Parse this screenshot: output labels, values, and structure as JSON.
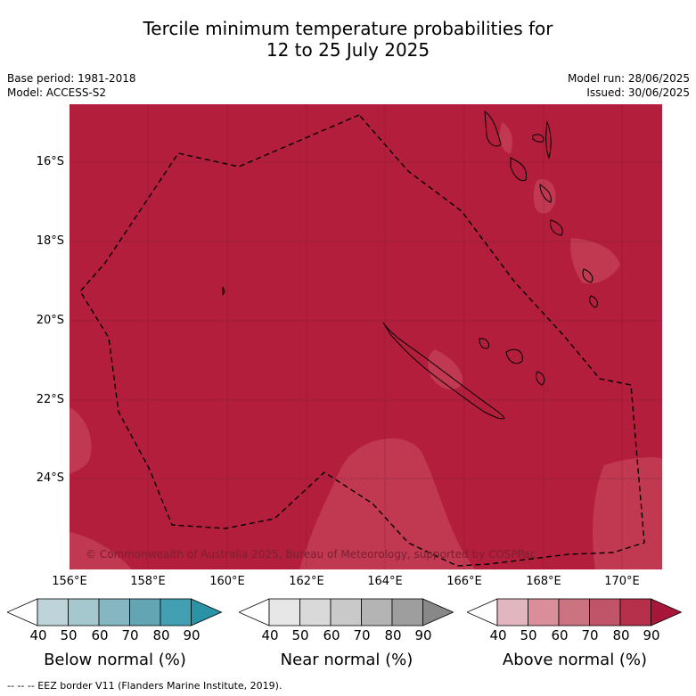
{
  "header": {
    "title_line1": "Tercile minimum temperature probabilities for",
    "title_line2": "12 to 25 July 2025",
    "base_period": "Base period: 1981-2018",
    "model": "Model: ACCESS-S2",
    "model_run": "Model run: 28/06/2025",
    "issued": "Issued: 30/06/2025"
  },
  "map": {
    "background_color": "#b31e3c",
    "lighter_color": "#c33d55",
    "copyright": "© Commonwealth of Australia 2025, Bureau of Meteorology, supported by COSPPac",
    "lat_labels": [
      "16°S",
      "18°S",
      "20°S",
      "22°S",
      "24°S"
    ],
    "lon_labels": [
      "156°E",
      "158°E",
      "160°E",
      "162°E",
      "164°E",
      "166°E",
      "168°E",
      "170°E"
    ]
  },
  "legends": [
    {
      "title": "Below normal (%)",
      "ticks": [
        "40",
        "50",
        "60",
        "70",
        "80",
        "90"
      ],
      "colors": [
        "#ffffff",
        "#bfd4da",
        "#a5c7ce",
        "#86b6c1",
        "#64a5b3",
        "#42a0b2",
        "#2a93a6"
      ]
    },
    {
      "title": "Near normal (%)",
      "ticks": [
        "40",
        "50",
        "60",
        "70",
        "80",
        "90"
      ],
      "colors": [
        "#ffffff",
        "#e7e7e7",
        "#d9d9d9",
        "#c9c9c9",
        "#b4b4b4",
        "#9e9e9e",
        "#888888"
      ]
    },
    {
      "title": "Above normal (%)",
      "ticks": [
        "40",
        "50",
        "60",
        "70",
        "80",
        "90"
      ],
      "colors": [
        "#ffffff",
        "#e2b6bf",
        "#d98e9a",
        "#cc7381",
        "#c05468",
        "#b7304b",
        "#a8163a"
      ]
    }
  ],
  "footer": {
    "eez_note": "--  --  -- EEZ border V11 (Flanders Marine Institute, 2019)."
  }
}
